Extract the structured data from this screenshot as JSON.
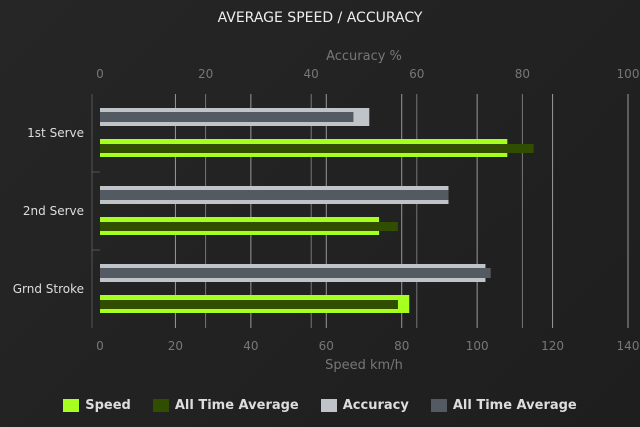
{
  "chart_data": {
    "type": "bar",
    "orientation": "horizontal",
    "title": "AVERAGE SPEED / ACCURACY",
    "categories": [
      "1st Serve",
      "2nd Serve",
      "Grnd Stroke"
    ],
    "top_axis": {
      "label": "Accuracy %",
      "range": [
        0,
        100
      ],
      "ticks": [
        "0",
        "20",
        "40",
        "60",
        "80",
        "100"
      ]
    },
    "bottom_axis": {
      "label": "Speed km/h",
      "range": [
        0,
        140
      ],
      "ticks": [
        "0",
        "20",
        "40",
        "60",
        "80",
        "100",
        "120",
        "140"
      ]
    },
    "grid": true,
    "legend_position": "bottom",
    "series": [
      {
        "name": "Speed",
        "axis": "bottom",
        "color": "#a6ff1e",
        "values": [
          108,
          74,
          82
        ]
      },
      {
        "name": "All Time Average",
        "axis": "bottom",
        "color": "#304d00",
        "values": [
          115,
          79,
          79
        ]
      },
      {
        "name": "Accuracy",
        "axis": "top",
        "color": "#c0c4c8",
        "values": [
          51,
          66,
          73
        ]
      },
      {
        "name": "All Time Average",
        "axis": "top",
        "color": "#545a62",
        "values": [
          48,
          66,
          74
        ]
      }
    ]
  }
}
